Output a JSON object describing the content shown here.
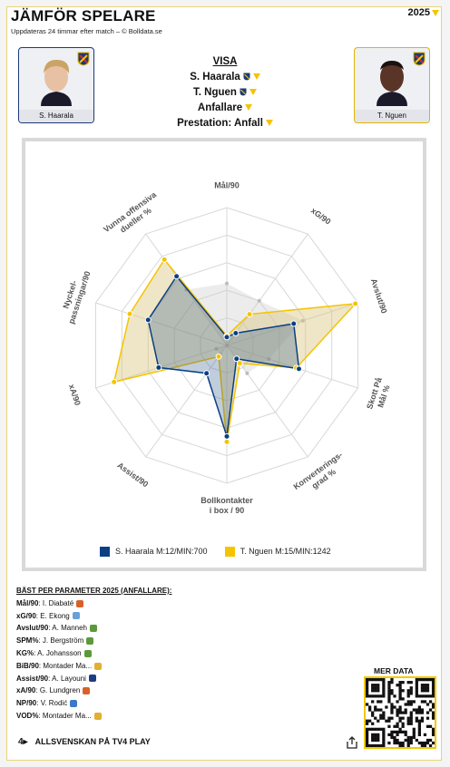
{
  "header": {
    "title": "JÄMFÖR SPELARE",
    "subtitle": "Uppdateras 24 timmar efter match – © Bolldata.se",
    "year": "2025"
  },
  "players": {
    "left": {
      "name": "S. Haarala"
    },
    "right": {
      "name": "T. Nguen"
    }
  },
  "selector": {
    "heading": "VISA",
    "player1": "S. Haarala",
    "player2": "T. Nguen",
    "position": "Anfallare",
    "mode": "Prestation: Anfall"
  },
  "chart_data": {
    "type": "radar",
    "axes": [
      "Mål/90",
      "xG/90",
      "Avslut/90",
      "Skott På Mål %",
      "Konverteringsgrad %",
      "Bollkontakter i box / 90",
      "Assist/90",
      "xA/90",
      "Nyckel-passningar/90",
      "Vunna offensiva dueller %"
    ],
    "axis_labels_display": [
      [
        "Mål/90"
      ],
      [
        "xG/90"
      ],
      [
        "Avslut/90"
      ],
      [
        "Skott På",
        "Mål %"
      ],
      [
        "Konverterings-",
        "grad %"
      ],
      [
        "Bollkontakter",
        "i box / 90"
      ],
      [
        "Assist/90"
      ],
      [
        "xA/90"
      ],
      [
        "Nyckel-",
        "passningar/90"
      ],
      [
        "Vunna offensiva",
        "dueller %"
      ]
    ],
    "rings": 5,
    "rlim": [
      0,
      1
    ],
    "series": [
      {
        "name": "S. Haarala M:12/MIN:700",
        "color": "#0b3f82",
        "fill": "#1e4a86",
        "values": [
          0.06,
          0.11,
          0.51,
          0.55,
          0.12,
          0.66,
          0.25,
          0.52,
          0.6,
          0.62
        ]
      },
      {
        "name": "T. Nguen M:15/MIN:1242",
        "color": "#f5c400",
        "fill": "#d8c47a",
        "values": [
          0.07,
          0.28,
          0.98,
          0.53,
          0.16,
          0.7,
          0.1,
          0.86,
          0.74,
          0.77
        ]
      }
    ],
    "median_values": [
      0.45,
      0.4,
      0.58,
      0.32,
      0.25,
      0.0,
      0.08,
      0.08,
      0.0,
      0.5
    ],
    "legend_position": "bottom"
  },
  "legend": {
    "s1": "S. Haarala M:12/MIN:700",
    "s2": "T. Nguen M:15/MIN:1242",
    "s1_color": "#0b3f82",
    "s2_color": "#f5c400"
  },
  "best": {
    "heading": "BÄST PER PARAMETER 2025 (ANFALLARE):",
    "rows": [
      {
        "param": "Mål/90",
        "player": "I. Diabaté",
        "color": "#d9602a"
      },
      {
        "param": "xG/90",
        "player": "E. Ekong",
        "color": "#6aa0d8"
      },
      {
        "param": "Avslut/90",
        "player": "A. Manneh",
        "color": "#5b9a3a"
      },
      {
        "param": "SPM%",
        "player": "J. Bergström",
        "color": "#5b9a3a"
      },
      {
        "param": "KG%",
        "player": "A. Johansson",
        "color": "#5b9a3a"
      },
      {
        "param": "BiB/90",
        "player": "Montader Ma...",
        "color": "#e0b030"
      },
      {
        "param": "Assist/90",
        "player": "A. Layouni",
        "color": "#1e3c84"
      },
      {
        "param": "xA/90",
        "player": "G. Lundgren",
        "color": "#d9602a"
      },
      {
        "param": "NP/90",
        "player": "V. Rodić",
        "color": "#3a7ac8"
      },
      {
        "param": "VOD%",
        "player": "Montader Ma...",
        "color": "#e0b030"
      }
    ]
  },
  "qr": {
    "label": "MER DATA"
  },
  "footer": {
    "text": "ALLSVENSKAN PÅ TV4 PLAY"
  }
}
